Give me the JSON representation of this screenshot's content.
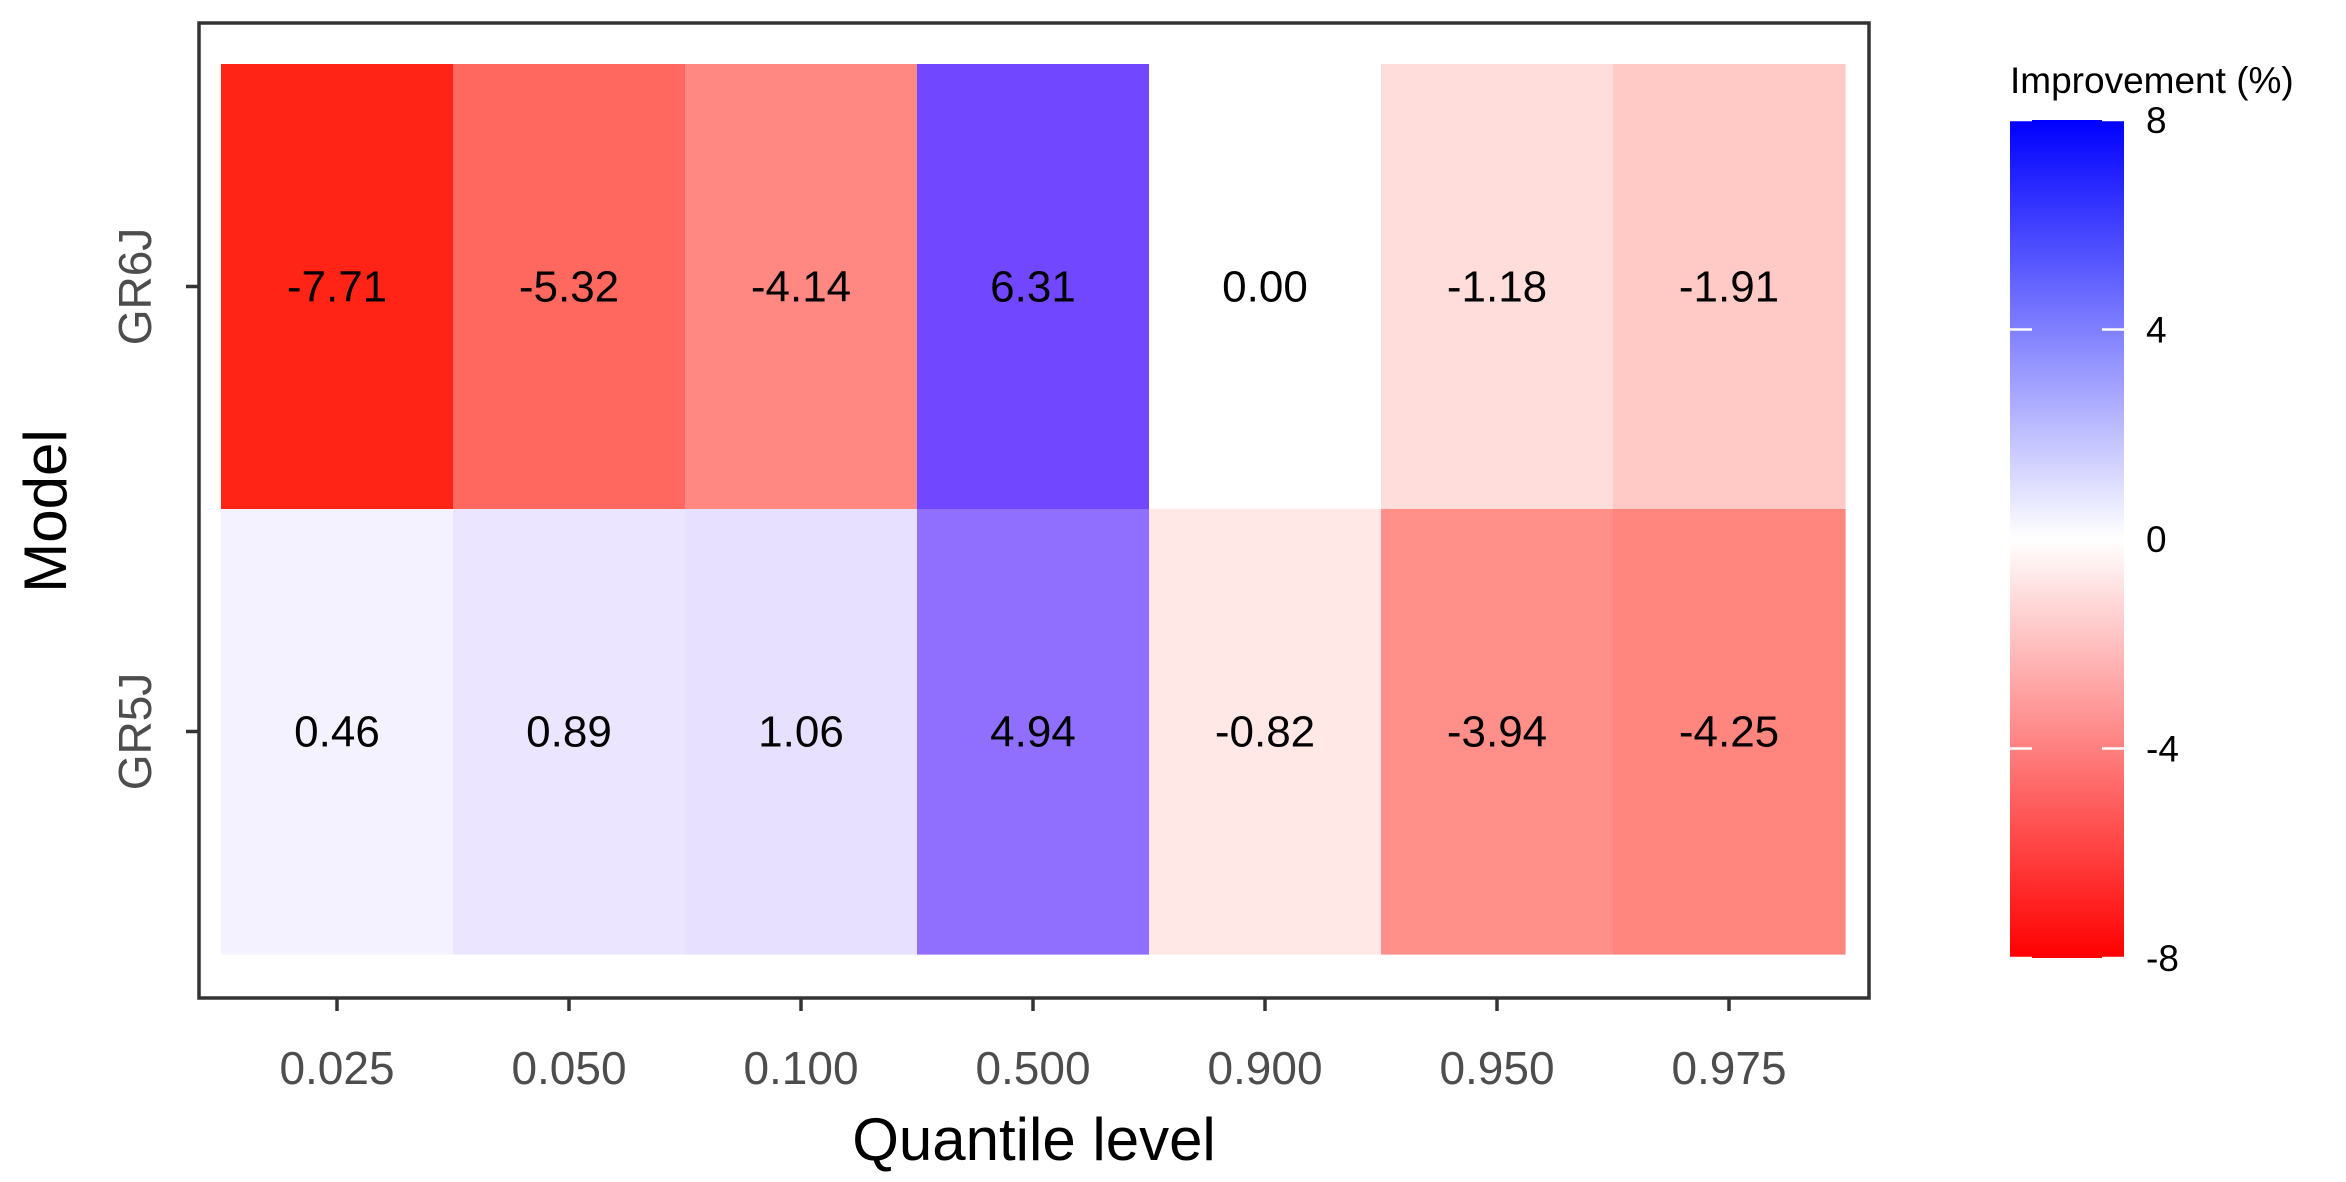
{
  "chart_data": {
    "type": "heatmap",
    "title": "",
    "xlabel": "Quantile level",
    "ylabel": "Model",
    "x_categories": [
      "0.025",
      "0.050",
      "0.100",
      "0.500",
      "0.900",
      "0.950",
      "0.975"
    ],
    "y_categories": [
      "GR6J",
      "GR5J"
    ],
    "values": [
      [
        -7.71,
        -5.32,
        -4.14,
        6.31,
        0.0,
        -1.18,
        -1.91
      ],
      [
        0.46,
        0.89,
        1.06,
        4.94,
        -0.82,
        -3.94,
        -4.25
      ]
    ],
    "value_labels": [
      [
        "-7.71",
        "-5.32",
        "-4.14",
        "6.31",
        "0.00",
        "-1.18",
        "-1.91"
      ],
      [
        "0.46",
        "0.89",
        "1.06",
        "4.94",
        "-0.82",
        "-3.94",
        "-4.25"
      ]
    ],
    "colorbar": {
      "title": "Improvement (%)",
      "range": [
        -8,
        8
      ],
      "ticks": [
        8,
        4,
        0,
        -4,
        -8
      ],
      "tick_labels": [
        "8",
        "4",
        "0",
        "-4",
        "-8"
      ],
      "low_color": "#ff0000",
      "mid_color": "#ffffff",
      "high_color": "#0000ff",
      "cell_low_color": "#ff2416",
      "cell_high_color": "#7147ff"
    },
    "grid": false,
    "legend_position": "right"
  }
}
